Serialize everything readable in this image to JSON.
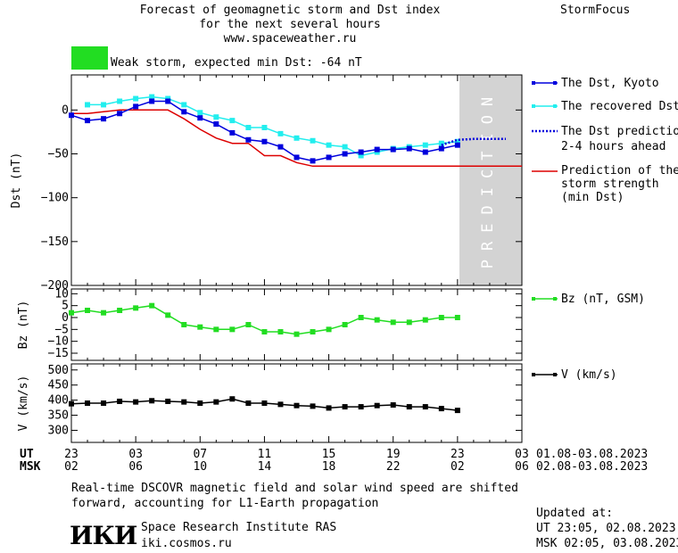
{
  "header": {
    "title_line1": "Forecast of geomagnetic storm and Dst index",
    "title_line2": "for the next several hours",
    "website": "www.spaceweather.ru",
    "brand": "StormFocus",
    "storm_status": "Weak storm, expected min Dst: -64 nT",
    "storm_color": "#22dd22"
  },
  "legend": {
    "dst_kyoto": "The Dst, Kyoto",
    "dst_recovered": "The recovered Dst",
    "dst_prediction_1": "The Dst prediction",
    "dst_prediction_2": "2-4 hours ahead",
    "strength_1": "Prediction of the",
    "strength_2": "storm strength",
    "strength_3": "(min Dst)",
    "bz": "Bz (nT, GSM)",
    "v": "V (km/s)"
  },
  "colors": {
    "dst_kyoto": "#0000dd",
    "dst_recovered": "#22eeee",
    "dst_prediction": "#0000dd",
    "strength": "#dd0000",
    "bz": "#22dd22",
    "v": "#000000",
    "prediction_band": "#d3d3d3"
  },
  "prediction_label": "PREDICTION",
  "time_axis": {
    "ut_label": "UT",
    "msk_label": "MSK",
    "ut_ticks": [
      "23",
      "03",
      "07",
      "11",
      "15",
      "19",
      "23",
      "03"
    ],
    "msk_ticks": [
      "02",
      "06",
      "10",
      "14",
      "18",
      "22",
      "02",
      "06"
    ],
    "ut_range": "01.08-03.08.2023",
    "msk_range": "02.08-03.08.2023"
  },
  "footer": {
    "note_line1": "Real-time DSCOVR magnetic field and solar wind speed are shifted",
    "note_line2": "forward, accounting for L1-Earth propagation",
    "logo_text": "ИКИ",
    "institute": "Space Research Institute RAS",
    "institute_site": "iki.cosmos.ru",
    "updated_label": "Updated at:",
    "updated_ut": "UT   23:05, 02.08.2023",
    "updated_msk": "MSK 02:05, 03.08.2023"
  },
  "chart_data": [
    {
      "type": "line",
      "ylabel": "Dst (nT)",
      "ylim": [
        -200,
        40
      ],
      "yticks": [
        0,
        -50,
        -100,
        -150,
        -200
      ],
      "xlim": [
        0,
        28
      ],
      "x_units": "hours since 23 UT 01.08.2023",
      "series": [
        {
          "name": "The Dst, Kyoto",
          "x": [
            0,
            1,
            2,
            3,
            4,
            5,
            6,
            7,
            8,
            9,
            10,
            11,
            12,
            13,
            14,
            15,
            16,
            17,
            18,
            19,
            20,
            21,
            22,
            23,
            24
          ],
          "y": [
            -6,
            -12,
            -10,
            -4,
            4,
            10,
            10,
            -2,
            -9,
            -16,
            -26,
            -34,
            -36,
            -42,
            -54,
            -58,
            -54,
            -50,
            -48,
            -45,
            -45,
            -44,
            -48,
            -44,
            -40
          ]
        },
        {
          "name": "The recovered Dst",
          "x": [
            1,
            2,
            3,
            4,
            5,
            6,
            7,
            8,
            9,
            10,
            11,
            12,
            13,
            14,
            15,
            16,
            17,
            18,
            19,
            20,
            21,
            22,
            23,
            24
          ],
          "y": [
            6,
            6,
            10,
            13,
            15,
            13,
            6,
            -3,
            -8,
            -12,
            -20,
            -20,
            -27,
            -32,
            -35,
            -40,
            -42,
            -52,
            -48,
            -44,
            -42,
            -40,
            -38,
            -36
          ]
        },
        {
          "name": "The Dst prediction 2-4 hours ahead",
          "x": [
            23,
            24,
            25,
            26,
            27
          ],
          "y": [
            -40,
            -34,
            -33,
            -33,
            -33
          ]
        },
        {
          "name": "Prediction of the storm strength (min Dst)",
          "x": [
            0,
            1,
            2,
            3,
            4,
            5,
            6,
            7,
            8,
            9,
            10,
            11,
            12,
            13,
            14,
            15,
            16,
            17,
            18,
            19,
            20,
            21,
            22,
            23,
            24,
            25,
            26,
            27,
            28
          ],
          "y": [
            -4,
            -4,
            -2,
            0,
            0,
            0,
            0,
            -10,
            -22,
            -32,
            -38,
            -38,
            -52,
            -52,
            -60,
            -64,
            -64,
            -64,
            -64,
            -64,
            -64,
            -64,
            -64,
            -64,
            -64,
            -64,
            -64,
            -64,
            -64
          ]
        }
      ],
      "prediction_x_start": 24,
      "grid": false
    },
    {
      "type": "line",
      "ylabel": "Bz (nT)",
      "ylim": [
        -18,
        12
      ],
      "yticks": [
        10,
        5,
        0,
        -5,
        -10,
        -15
      ],
      "xlim": [
        0,
        28
      ],
      "series": [
        {
          "name": "Bz (nT, GSM)",
          "x": [
            0,
            1,
            2,
            3,
            4,
            5,
            6,
            7,
            8,
            9,
            10,
            11,
            12,
            13,
            14,
            15,
            16,
            17,
            18,
            19,
            20,
            21,
            22,
            23,
            24
          ],
          "y": [
            2,
            3,
            2,
            3,
            4,
            5,
            1,
            -3,
            -4,
            -5,
            -5,
            -3,
            -6,
            -6,
            -7,
            -6,
            -5,
            -3,
            0,
            -1,
            -2,
            -2,
            -1,
            0,
            0
          ]
        }
      ],
      "grid": false
    },
    {
      "type": "line",
      "ylabel": "V (km/s)",
      "ylim": [
        260,
        520
      ],
      "yticks": [
        500,
        450,
        400,
        350,
        300
      ],
      "xlim": [
        0,
        28
      ],
      "series": [
        {
          "name": "V (km/s)",
          "x": [
            0,
            1,
            2,
            3,
            4,
            5,
            6,
            7,
            8,
            9,
            10,
            11,
            12,
            13,
            14,
            15,
            16,
            17,
            18,
            19,
            20,
            21,
            22,
            23,
            24
          ],
          "y": [
            388,
            390,
            390,
            396,
            394,
            398,
            396,
            394,
            390,
            394,
            404,
            390,
            390,
            386,
            382,
            380,
            374,
            378,
            378,
            382,
            384,
            378,
            378,
            372,
            366
          ]
        }
      ],
      "grid": false
    }
  ]
}
